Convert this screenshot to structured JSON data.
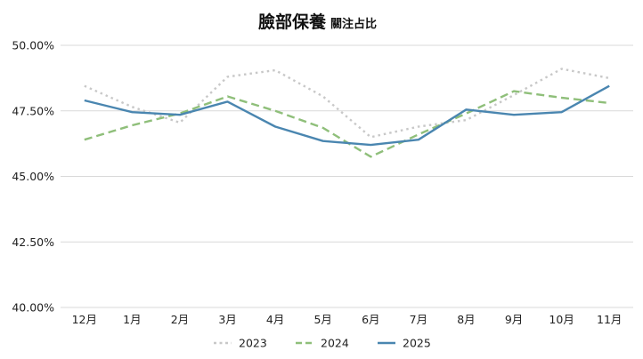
{
  "chart_data": {
    "type": "line",
    "title_main": "臉部保養",
    "title_sub": "關注占比",
    "categories": [
      "12月",
      "1月",
      "2月",
      "3月",
      "4月",
      "5月",
      "6月",
      "7月",
      "8月",
      "9月",
      "10月",
      "11月"
    ],
    "ylim": [
      40.0,
      50.0
    ],
    "yticks": [
      "50.00%",
      "47.50%",
      "45.00%",
      "42.50%",
      "40.00%"
    ],
    "ytick_values": [
      50.0,
      47.5,
      45.0,
      42.5,
      40.0
    ],
    "grid": true,
    "legend_position": "bottom",
    "series": [
      {
        "name": "2023",
        "color": "#c8c8c8",
        "dash": "dotted",
        "values": [
          48.45,
          47.65,
          47.05,
          48.8,
          49.05,
          48.05,
          46.5,
          46.9,
          47.15,
          48.1,
          49.1,
          48.75
        ]
      },
      {
        "name": "2024",
        "color": "#8fbf7a",
        "dash": "dashed",
        "values": [
          46.4,
          46.95,
          47.4,
          48.05,
          47.5,
          46.85,
          45.75,
          46.6,
          47.4,
          48.25,
          48.0,
          47.8
        ]
      },
      {
        "name": "2025",
        "color": "#4a86b0",
        "dash": "solid",
        "values": [
          47.9,
          47.45,
          47.35,
          47.85,
          46.9,
          46.35,
          46.2,
          46.4,
          47.55,
          47.35,
          47.45,
          48.45
        ]
      }
    ]
  }
}
